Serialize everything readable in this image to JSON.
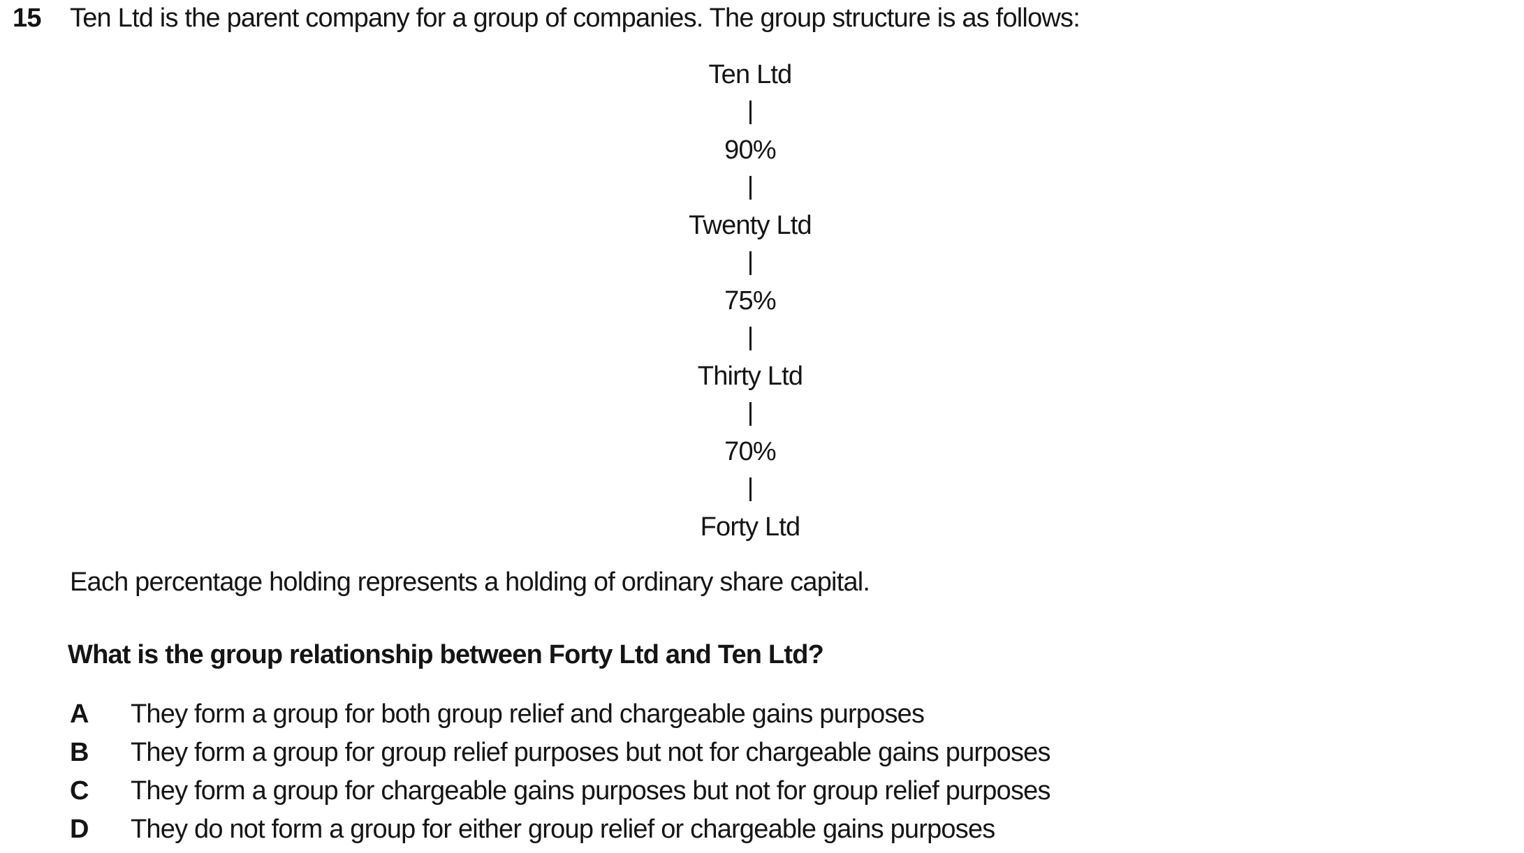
{
  "question": {
    "number": "15",
    "intro": "Ten Ltd is the parent company for a group of companies. The group structure is as follows:",
    "note": "Each percentage holding represents a holding of ordinary share capital.",
    "prompt": "What is the group relationship between Forty Ltd and Ten Ltd?"
  },
  "diagram": {
    "nodes": [
      {
        "type": "company",
        "label": "Ten Ltd"
      },
      {
        "type": "percentage",
        "label": "90%"
      },
      {
        "type": "company",
        "label": "Twenty Ltd"
      },
      {
        "type": "percentage",
        "label": "75%"
      },
      {
        "type": "company",
        "label": "Thirty Ltd"
      },
      {
        "type": "percentage",
        "label": "70%"
      },
      {
        "type": "company",
        "label": "Forty Ltd"
      }
    ]
  },
  "options": [
    {
      "letter": "A",
      "text": "They form a group for both group relief and chargeable gains purposes"
    },
    {
      "letter": "B",
      "text": "They form a group for group relief purposes but not for chargeable gains purposes"
    },
    {
      "letter": "C",
      "text": "They form a group for chargeable gains purposes but not for group relief purposes"
    },
    {
      "letter": "D",
      "text": "They do not form a group for either group relief or chargeable gains purposes"
    }
  ],
  "colors": {
    "text": "#151515",
    "background": "#ffffff"
  }
}
